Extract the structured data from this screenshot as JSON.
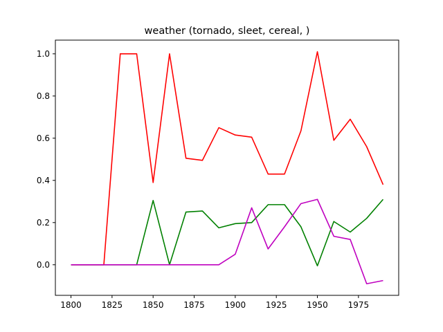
{
  "chart_data": {
    "type": "line",
    "title": "weather (tornado, sleet, cereal, )",
    "xlabel": "",
    "ylabel": "",
    "xlim": [
      1790.5,
      1999.5
    ],
    "ylim": [
      -0.145,
      1.065
    ],
    "xticks": [
      1800,
      1825,
      1850,
      1875,
      1900,
      1925,
      1950,
      1975
    ],
    "yticks": [
      0.0,
      0.2,
      0.4,
      0.6,
      0.8,
      1.0
    ],
    "ytick_labels": [
      "0.0",
      "0.2",
      "0.4",
      "0.6",
      "0.8",
      "1.0"
    ],
    "grid": false,
    "legend": "none",
    "x": [
      1800,
      1810,
      1820,
      1830,
      1840,
      1850,
      1860,
      1870,
      1880,
      1890,
      1900,
      1910,
      1920,
      1930,
      1940,
      1950,
      1960,
      1970,
      1980,
      1990
    ],
    "series": [
      {
        "color": "#ff0000",
        "values": [
          0.0,
          0.0,
          0.0,
          1.0,
          1.0,
          0.39,
          1.0,
          0.505,
          0.495,
          0.65,
          0.615,
          0.605,
          0.43,
          0.43,
          0.635,
          1.01,
          0.59,
          0.69,
          0.56,
          0.38
        ]
      },
      {
        "color": "#008000",
        "values": [
          0.0,
          0.0,
          0.0,
          0.0,
          0.0,
          0.305,
          0.0,
          0.25,
          0.255,
          0.175,
          0.195,
          0.2,
          0.285,
          0.285,
          0.18,
          -0.005,
          0.205,
          0.155,
          0.22,
          0.31
        ]
      },
      {
        "color": "#bf00bf",
        "values": [
          0.0,
          0.0,
          0.0,
          0.0,
          0.0,
          0.0,
          0.0,
          0.0,
          0.0,
          0.0,
          0.05,
          0.27,
          0.075,
          0.18,
          0.29,
          0.31,
          0.135,
          0.12,
          -0.09,
          -0.075
        ]
      }
    ]
  }
}
